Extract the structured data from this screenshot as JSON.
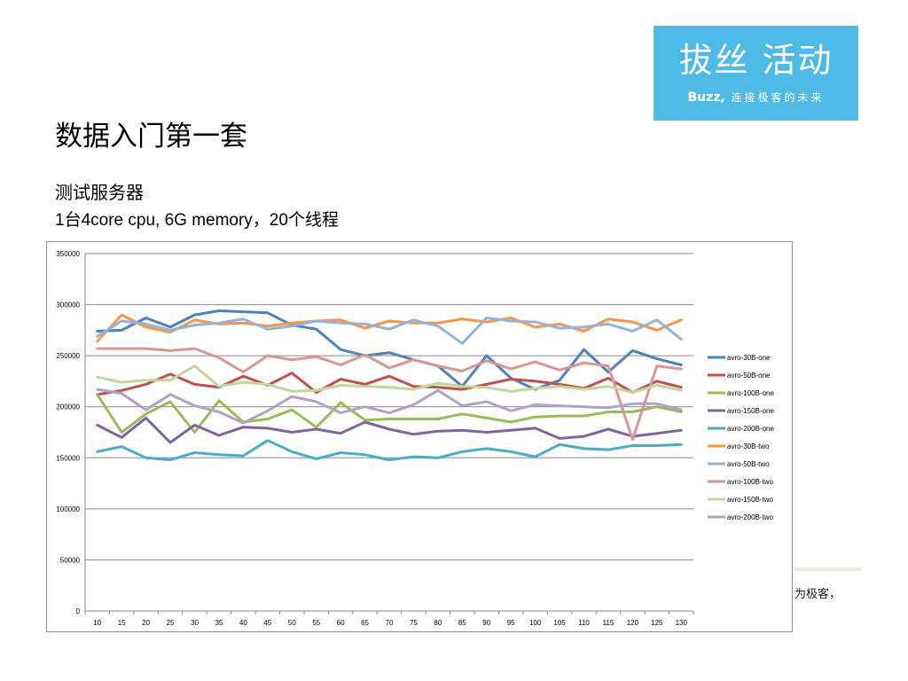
{
  "logo": {
    "main": "拔丝 活动",
    "brand": "Buzz,",
    "tagline": "连接极客的未来"
  },
  "slide": {
    "title": "数据入门第一套",
    "subtitle": "测试服务器",
    "detail": "1台4core cpu, 6G memory，20个线程",
    "footer_fragment": "为极客，"
  },
  "chart_data": {
    "type": "line",
    "x": [
      10,
      15,
      20,
      25,
      30,
      35,
      40,
      45,
      50,
      55,
      60,
      65,
      70,
      75,
      80,
      85,
      90,
      95,
      100,
      105,
      110,
      115,
      120,
      125,
      130
    ],
    "ylim": [
      0,
      350000
    ],
    "yticks": [
      0,
      50000,
      100000,
      150000,
      200000,
      250000,
      300000,
      350000
    ],
    "grid": true,
    "legend_position": "right",
    "series": [
      {
        "name": "avro-30B-one",
        "color": "#4f81bd",
        "values": [
          274000,
          275000,
          287000,
          278000,
          290000,
          294000,
          293000,
          292000,
          280000,
          276000,
          256000,
          250000,
          253000,
          246000,
          240000,
          220000,
          250000,
          228000,
          217000,
          226000,
          256000,
          234000,
          255000,
          247000,
          241000
        ]
      },
      {
        "name": "avro-50B-one",
        "color": "#c0504d",
        "values": [
          212000,
          216000,
          222000,
          232000,
          222000,
          219000,
          230000,
          221000,
          233000,
          214000,
          227000,
          222000,
          230000,
          220000,
          219000,
          217000,
          222000,
          227000,
          225000,
          222000,
          218000,
          228000,
          214000,
          225000,
          219000
        ]
      },
      {
        "name": "avro-100B-one",
        "color": "#9bbb59",
        "values": [
          212000,
          175000,
          193000,
          205000,
          175000,
          206000,
          185000,
          188000,
          197000,
          180000,
          204000,
          187000,
          188000,
          188000,
          188000,
          193000,
          189000,
          185000,
          190000,
          191000,
          191000,
          195000,
          195000,
          200000,
          195000
        ]
      },
      {
        "name": "avro-150B-one",
        "color": "#8064a2",
        "values": [
          182000,
          170000,
          189000,
          165000,
          182000,
          172000,
          180000,
          179000,
          175000,
          178000,
          174000,
          185000,
          178000,
          173000,
          176000,
          177000,
          175000,
          177000,
          179000,
          169000,
          171000,
          178000,
          171000,
          174000,
          177000
        ]
      },
      {
        "name": "avro-200B-one",
        "color": "#4bacc6",
        "values": [
          156000,
          161000,
          150000,
          148000,
          155000,
          153000,
          152000,
          167000,
          156000,
          149000,
          155000,
          153000,
          148000,
          151000,
          150000,
          156000,
          159000,
          156000,
          151000,
          163000,
          159000,
          158000,
          162000,
          162000,
          163000
        ]
      },
      {
        "name": "avro-30B-two",
        "color": "#f79646",
        "values": [
          264000,
          290000,
          278000,
          273000,
          285000,
          281000,
          282000,
          279000,
          282000,
          284000,
          285000,
          277000,
          284000,
          282000,
          282000,
          286000,
          283000,
          287000,
          278000,
          281000,
          274000,
          286000,
          283000,
          275000,
          285000
        ]
      },
      {
        "name": "avro-50B-two",
        "color": "#95b3d7",
        "values": [
          269000,
          284000,
          281000,
          275000,
          280000,
          282000,
          286000,
          276000,
          279000,
          284000,
          282000,
          281000,
          276000,
          285000,
          279000,
          262000,
          287000,
          284000,
          283000,
          277000,
          278000,
          281000,
          274000,
          285000,
          266000
        ]
      },
      {
        "name": "avro-100B-two",
        "color": "#d99694",
        "values": [
          257000,
          257000,
          257000,
          255000,
          257000,
          248000,
          234000,
          250000,
          246000,
          249000,
          241000,
          251000,
          238000,
          246000,
          240000,
          235000,
          245000,
          237000,
          244000,
          236000,
          243000,
          240000,
          168000,
          240000,
          237000
        ]
      },
      {
        "name": "avro-150B-two",
        "color": "#c3d69b",
        "values": [
          229000,
          224000,
          226000,
          226000,
          240000,
          220000,
          224000,
          222000,
          215000,
          216000,
          221000,
          220000,
          219000,
          217000,
          223000,
          220000,
          219000,
          215000,
          218000,
          220000,
          217000,
          220000,
          214000,
          221000,
          216000
        ]
      },
      {
        "name": "avro-200B-two",
        "color": "#b3a2c7",
        "values": [
          217000,
          213000,
          197000,
          212000,
          201000,
          195000,
          184000,
          196000,
          210000,
          205000,
          194000,
          200000,
          194000,
          202000,
          216000,
          201000,
          205000,
          196000,
          202000,
          201000,
          200000,
          199000,
          203000,
          203000,
          197000
        ]
      }
    ]
  }
}
